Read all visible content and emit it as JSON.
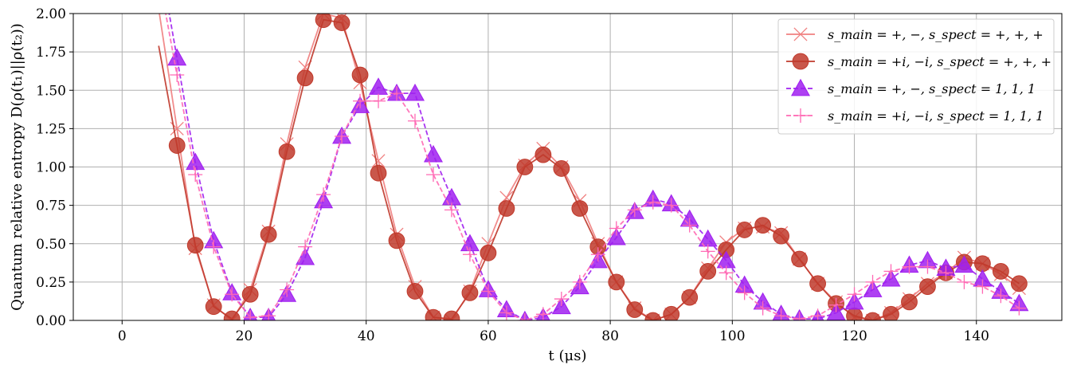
{
  "chart_data": {
    "type": "line",
    "xlabel": "t (μs)",
    "ylabel": "Quantum relative entropy D(ρ(t₁)||ρ(t₂))",
    "xlim": [
      -8,
      154
    ],
    "ylim": [
      0,
      2.0
    ],
    "xticks": [
      0,
      20,
      40,
      60,
      80,
      100,
      120,
      140
    ],
    "yticks": [
      0.0,
      0.25,
      0.5,
      0.75,
      1.0,
      1.25,
      1.5,
      1.75,
      2.0
    ],
    "xtick_labels": [
      "0",
      "20",
      "40",
      "60",
      "80",
      "100",
      "120",
      "140"
    ],
    "ytick_labels": [
      "0.00",
      "0.25",
      "0.50",
      "0.75",
      "1.00",
      "1.25",
      "1.50",
      "1.75",
      "2.00"
    ],
    "grid": true,
    "legend_position": "top-right",
    "x": [
      9,
      12,
      15,
      18,
      21,
      24,
      27,
      30,
      33,
      36,
      39,
      42,
      45,
      48,
      51,
      54,
      57,
      60,
      63,
      66,
      69,
      72,
      75,
      78,
      81,
      84,
      87,
      90,
      93,
      96,
      99,
      102,
      105,
      108,
      111,
      114,
      117,
      120,
      123,
      126,
      129,
      132,
      135,
      138,
      141,
      144,
      147
    ],
    "series": [
      {
        "name": "s_main = +, −,  s_spect = +, +, +",
        "color": "#f08080",
        "linestyle": "solid",
        "marker": "x",
        "values": [
          1.25,
          0.47,
          0.1,
          0.0,
          0.2,
          0.58,
          1.15,
          1.65,
          2.0,
          1.97,
          1.55,
          1.04,
          0.56,
          0.22,
          0.02,
          0.0,
          0.19,
          0.5,
          0.8,
          1.01,
          1.12,
          1.0,
          0.78,
          0.5,
          0.25,
          0.08,
          0.0,
          0.04,
          0.15,
          0.34,
          0.51,
          0.6,
          0.61,
          0.57,
          0.4,
          0.24,
          0.12,
          0.02,
          0.0,
          0.05,
          0.14,
          0.24,
          0.31,
          0.41,
          0.37,
          0.3,
          0.21
        ]
      },
      {
        "name": "s_main = +i, −i,  s_spect = +, +, +",
        "color": "#c0392b",
        "linestyle": "solid",
        "marker": "o",
        "values": [
          1.14,
          0.49,
          0.09,
          0.01,
          0.17,
          0.56,
          1.1,
          1.58,
          1.96,
          1.94,
          1.6,
          0.96,
          0.52,
          0.19,
          0.02,
          0.01,
          0.18,
          0.44,
          0.73,
          1.0,
          1.08,
          0.99,
          0.73,
          0.48,
          0.25,
          0.07,
          0.0,
          0.04,
          0.15,
          0.32,
          0.46,
          0.59,
          0.62,
          0.55,
          0.4,
          0.24,
          0.11,
          0.03,
          0.0,
          0.04,
          0.12,
          0.22,
          0.31,
          0.38,
          0.37,
          0.32,
          0.24
        ]
      },
      {
        "name": "s_main = +, −,  s_spect = 1, 1, 1",
        "color": "#a020f0",
        "linestyle": "dashed",
        "marker": "^",
        "values": [
          1.71,
          1.03,
          0.52,
          0.18,
          0.02,
          0.02,
          0.17,
          0.41,
          0.78,
          1.2,
          1.4,
          1.52,
          1.48,
          1.48,
          1.08,
          0.8,
          0.5,
          0.2,
          0.07,
          0.0,
          0.02,
          0.09,
          0.22,
          0.39,
          0.54,
          0.71,
          0.79,
          0.76,
          0.66,
          0.53,
          0.39,
          0.23,
          0.12,
          0.04,
          0.01,
          0.01,
          0.05,
          0.12,
          0.2,
          0.27,
          0.36,
          0.39,
          0.34,
          0.36,
          0.27,
          0.19,
          0.11
        ]
      },
      {
        "name": "s_main = +i, −i,  s_spect = 1, 1, 1",
        "color": "#ff69b4",
        "linestyle": "dashed",
        "marker": "+",
        "values": [
          1.6,
          0.95,
          0.48,
          0.17,
          0.02,
          0.03,
          0.2,
          0.48,
          0.82,
          1.2,
          1.43,
          1.43,
          1.48,
          1.3,
          0.95,
          0.72,
          0.43,
          0.19,
          0.05,
          0.0,
          0.04,
          0.14,
          0.25,
          0.43,
          0.6,
          0.72,
          0.77,
          0.75,
          0.62,
          0.45,
          0.31,
          0.18,
          0.08,
          0.03,
          0.01,
          0.03,
          0.1,
          0.17,
          0.25,
          0.32,
          0.35,
          0.35,
          0.31,
          0.25,
          0.22,
          0.16,
          0.08
        ]
      }
    ]
  }
}
